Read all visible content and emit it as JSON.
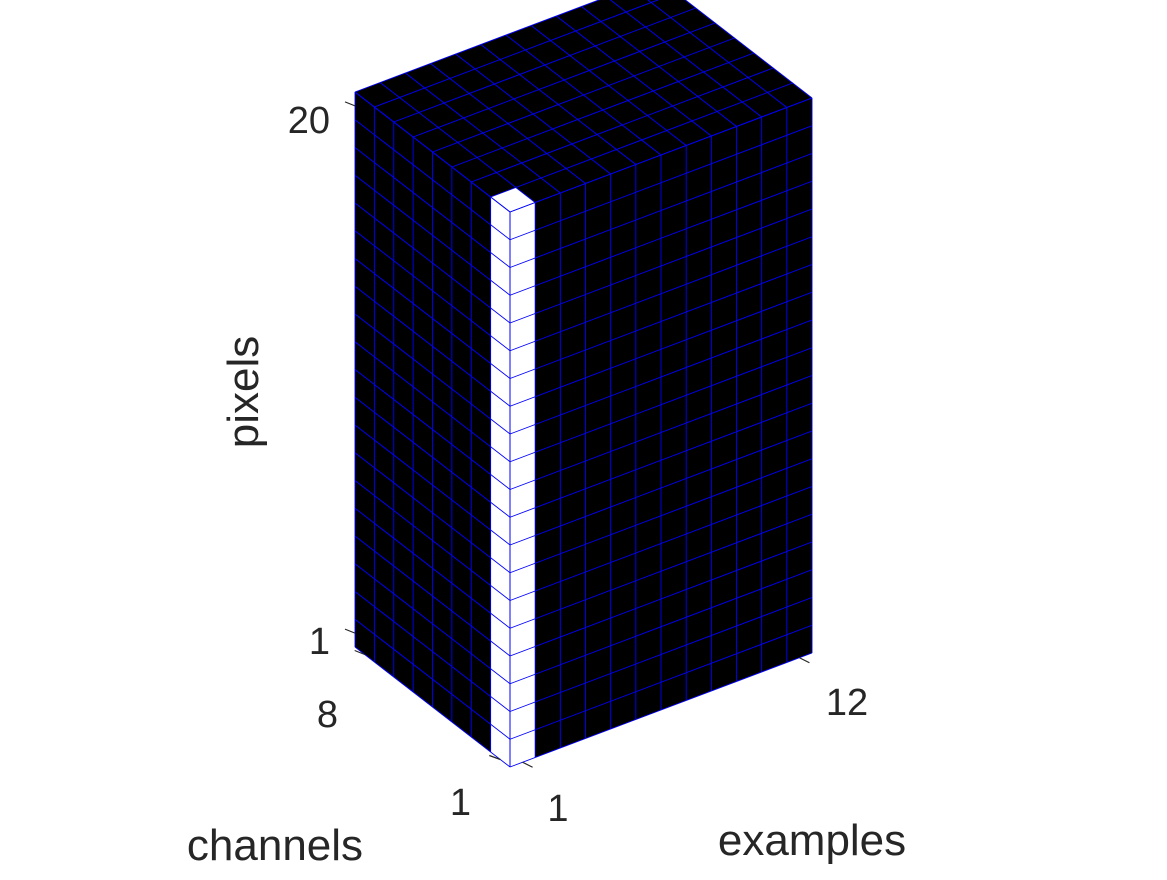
{
  "figure": {
    "type": "3d-tensor-voxel-diagram",
    "axes": {
      "x": {
        "label": "examples",
        "size": 12,
        "tick_labels": [
          "1",
          "12"
        ]
      },
      "y": {
        "label": "channels",
        "size": 8,
        "tick_labels": [
          "1",
          "8"
        ]
      },
      "z": {
        "label": "pixels",
        "size": 20,
        "tick_labels": [
          "1",
          "20"
        ]
      }
    },
    "highlight": {
      "example": 1,
      "channel": 1,
      "pixels": "all"
    },
    "colors": {
      "voxel_fill": "#000000",
      "highlight_fill": "#ffffff",
      "grid_line": "#0000ff",
      "text": "#262626"
    }
  }
}
